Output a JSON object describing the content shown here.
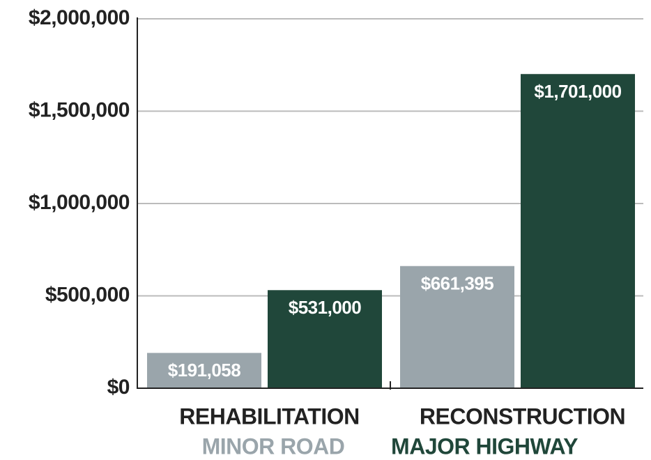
{
  "chart_data": {
    "type": "bar",
    "categories": [
      "REHABILITATION",
      "RECONSTRUCTION"
    ],
    "series": [
      {
        "name": "MINOR ROAD",
        "color": "#9aa5ab",
        "values": [
          191058,
          661395
        ],
        "value_labels": [
          "$191,058",
          "$661,395"
        ]
      },
      {
        "name": "MAJOR HIGHWAY",
        "color": "#20473a",
        "values": [
          531000,
          1701000
        ],
        "value_labels": [
          "$531,000",
          "$1,701,000"
        ]
      }
    ],
    "ylim": [
      0,
      2000000
    ],
    "yticks": [
      {
        "value": 0,
        "label": "$0"
      },
      {
        "value": 500000,
        "label": "$500,000"
      },
      {
        "value": 1000000,
        "label": "$1,000,000"
      },
      {
        "value": 1500000,
        "label": "$1,500,000"
      },
      {
        "value": 2000000,
        "label": "$2,000,000"
      }
    ],
    "grid": true
  }
}
